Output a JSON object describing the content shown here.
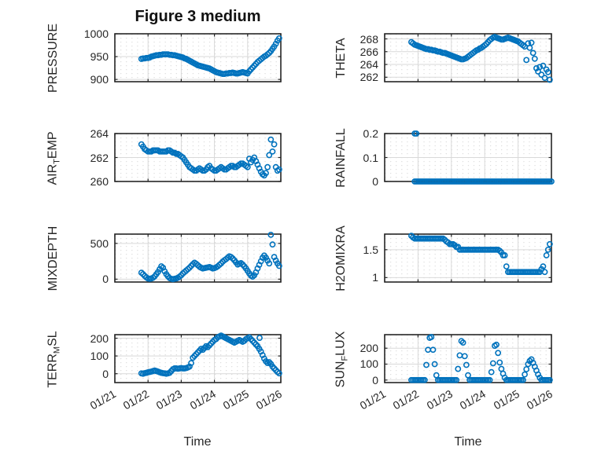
{
  "title": "Figure 3 medium",
  "xlabel": "Time",
  "accent_color": "#0072BD",
  "axis_color": "#262626",
  "grid_color": "#d9d9d9",
  "minor_grid_color": "#c9c9c9",
  "x_axis": {
    "xlim": [
      21,
      26
    ],
    "tick_values": [
      21,
      22,
      23,
      24,
      25,
      26
    ],
    "tick_labels": [
      "01/21",
      "01/22",
      "01/23",
      "01/24",
      "01/25",
      "01/26"
    ]
  },
  "chart_data": [
    {
      "type": "scatter",
      "name": "pressure",
      "marker": "open-circle",
      "ylabel_parts": [
        {
          "t": "PRESSURE"
        }
      ],
      "ylim": [
        895,
        1000
      ],
      "yticks": [
        900,
        950,
        1000
      ],
      "ytick_labels": [
        "900",
        "950",
        "1000"
      ],
      "grid": true,
      "series": {
        "x_start": 21.8,
        "x_step": 0.05,
        "y": [
          945,
          946,
          946,
          947,
          947,
          948,
          950,
          951,
          952,
          953,
          953,
          954,
          954,
          955,
          955,
          955,
          955,
          954,
          954,
          953,
          953,
          952,
          951,
          950,
          949,
          948,
          946,
          945,
          943,
          941,
          939,
          937,
          935,
          933,
          931,
          930,
          929,
          928,
          927,
          926,
          925,
          924,
          922,
          920,
          918,
          916,
          915,
          914,
          913,
          912,
          912,
          913,
          913,
          914,
          914,
          915,
          914,
          913,
          913,
          914,
          915,
          916,
          915,
          914,
          913,
          918,
          922,
          926,
          930,
          934,
          938,
          941,
          944,
          947,
          950,
          952,
          955,
          958,
          962,
          967,
          972,
          978,
          985,
          990
        ]
      },
      "extra_points": []
    },
    {
      "type": "scatter",
      "name": "theta",
      "marker": "open-circle",
      "ylabel_parts": [
        {
          "t": "THETA"
        }
      ],
      "ylim": [
        261.3,
        268.8
      ],
      "yticks": [
        262,
        264,
        266,
        268
      ],
      "ytick_labels": [
        "262",
        "264",
        "266",
        "268"
      ],
      "grid": true,
      "series": {
        "x_start": 21.8,
        "x_step": 0.05,
        "y": [
          267.5,
          267.3,
          267.1,
          267.0,
          266.9,
          266.8,
          266.7,
          266.6,
          266.5,
          266.4,
          266.4,
          266.3,
          266.3,
          266.2,
          266.2,
          266.1,
          266.0,
          266.0,
          265.9,
          265.8,
          265.8,
          265.7,
          265.6,
          265.5,
          265.4,
          265.3,
          265.2,
          265.1,
          265.0,
          264.9,
          264.8,
          264.8,
          264.9,
          265.0,
          265.2,
          265.4,
          265.6,
          265.8,
          266.0,
          266.2,
          266.3,
          266.5,
          266.6,
          266.8,
          267.0,
          267.2,
          267.5,
          267.8,
          268.0,
          268.2,
          268.3,
          268.2,
          268.1,
          268.0,
          267.9,
          267.9,
          268.0,
          268.1,
          268.2,
          268.1,
          268.0,
          267.9,
          267.8,
          267.7,
          267.6,
          267.4,
          267.2,
          267.0,
          266.8,
          264.7,
          267.3,
          266.6,
          267.4,
          265.8,
          264.9,
          263.4,
          262.9,
          263.6,
          262.4,
          263.8,
          261.9,
          263.2,
          262.8,
          261.6
        ]
      },
      "extra_points": []
    },
    {
      "type": "scatter",
      "name": "air_temp",
      "marker": "open-circle",
      "ylabel_parts": [
        {
          "t": "AIR"
        },
        {
          "s": "T"
        },
        {
          "t": "EMP"
        }
      ],
      "ylim": [
        260,
        264
      ],
      "yticks": [
        260,
        262,
        264
      ],
      "ytick_labels": [
        "260",
        "262",
        "264"
      ],
      "grid": true,
      "series": {
        "x_start": 21.8,
        "x_step": 0.05,
        "y": [
          263.1,
          262.9,
          262.7,
          262.6,
          262.5,
          262.5,
          262.5,
          262.6,
          262.6,
          262.6,
          262.6,
          262.5,
          262.5,
          262.5,
          262.5,
          262.5,
          262.6,
          262.6,
          262.5,
          262.4,
          262.4,
          262.3,
          262.3,
          262.2,
          262.1,
          262.0,
          261.8,
          261.6,
          261.4,
          261.2,
          261.1,
          261.0,
          260.9,
          260.9,
          261.0,
          261.1,
          261.0,
          260.9,
          260.9,
          261.0,
          261.2,
          261.3,
          261.1,
          261.0,
          260.9,
          260.9,
          261.0,
          261.1,
          261.2,
          261.1,
          261.0,
          261.0,
          261.1,
          261.2,
          261.3,
          261.3,
          261.2,
          261.2,
          261.3,
          261.4,
          261.5,
          261.5,
          261.4,
          261.3,
          261.2,
          261.9,
          261.6,
          261.8,
          262.0,
          261.7,
          261.4,
          261.1,
          260.8,
          260.6,
          260.5,
          260.7,
          261.2,
          262.2,
          263.5,
          262.5,
          263.1,
          261.2,
          260.9,
          261.0
        ]
      },
      "extra_points": []
    },
    {
      "type": "scatter",
      "name": "rainfall",
      "marker": "open-circle",
      "ylabel_parts": [
        {
          "t": "RAINFALL"
        }
      ],
      "ylim": [
        0,
        0.2
      ],
      "yticks": [
        0,
        0.1,
        0.2
      ],
      "ytick_labels": [
        "0",
        "0.1",
        "0.2"
      ],
      "grid": true,
      "series": {
        "x_start": 21.9,
        "x_step": 0.05,
        "y": [
          0,
          0,
          0,
          0,
          0,
          0,
          0,
          0,
          0,
          0,
          0,
          0,
          0,
          0,
          0,
          0,
          0,
          0,
          0,
          0,
          0,
          0,
          0,
          0,
          0,
          0,
          0,
          0,
          0,
          0,
          0,
          0,
          0,
          0,
          0,
          0,
          0,
          0,
          0,
          0,
          0,
          0,
          0,
          0,
          0,
          0,
          0,
          0,
          0,
          0,
          0,
          0,
          0,
          0,
          0,
          0,
          0,
          0,
          0,
          0,
          0,
          0,
          0,
          0,
          0,
          0,
          0,
          0,
          0,
          0,
          0,
          0,
          0,
          0,
          0,
          0,
          0,
          0,
          0,
          0,
          0,
          0,
          0
        ]
      },
      "extra_points": [
        [
          21.9,
          0.2
        ],
        [
          21.95,
          0.2
        ]
      ]
    },
    {
      "type": "scatter",
      "name": "mixdepth",
      "marker": "open-circle",
      "ylabel_parts": [
        {
          "t": "MIXDEPTH"
        }
      ],
      "ylim": [
        -40,
        630
      ],
      "yticks": [
        0,
        500
      ],
      "ytick_labels": [
        "0",
        "500"
      ],
      "grid": true,
      "series": {
        "x_start": 21.8,
        "x_step": 0.05,
        "y": [
          90,
          70,
          45,
          25,
          10,
          5,
          10,
          20,
          40,
          70,
          100,
          140,
          180,
          160,
          110,
          70,
          40,
          15,
          5,
          0,
          5,
          10,
          20,
          35,
          55,
          80,
          100,
          120,
          140,
          160,
          185,
          210,
          230,
          215,
          195,
          175,
          160,
          150,
          155,
          160,
          165,
          170,
          160,
          150,
          155,
          165,
          180,
          200,
          220,
          245,
          265,
          280,
          300,
          320,
          310,
          290,
          265,
          235,
          205,
          215,
          225,
          205,
          180,
          150,
          115,
          80,
          50,
          35,
          55,
          95,
          150,
          200,
          250,
          300,
          330,
          300,
          260,
          220,
          620,
          485,
          310,
          260,
          220,
          185
        ]
      },
      "extra_points": []
    },
    {
      "type": "scatter",
      "name": "h2omixra",
      "marker": "open-circle",
      "ylabel_parts": [
        {
          "t": "H2OMIXRA"
        }
      ],
      "ylim": [
        0.92,
        1.78
      ],
      "yticks": [
        1,
        1.5
      ],
      "ytick_labels": [
        "1",
        "1.5"
      ],
      "grid": true,
      "series": {
        "x_start": 21.8,
        "x_step": 0.05,
        "y": [
          1.75,
          1.72,
          1.7,
          1.7,
          1.7,
          1.7,
          1.7,
          1.7,
          1.7,
          1.7,
          1.7,
          1.7,
          1.7,
          1.7,
          1.7,
          1.7,
          1.7,
          1.7,
          1.7,
          1.7,
          1.68,
          1.65,
          1.63,
          1.6,
          1.6,
          1.6,
          1.58,
          1.55,
          1.55,
          1.5,
          1.5,
          1.5,
          1.5,
          1.5,
          1.5,
          1.5,
          1.5,
          1.5,
          1.5,
          1.5,
          1.5,
          1.5,
          1.5,
          1.5,
          1.5,
          1.5,
          1.5,
          1.5,
          1.5,
          1.5,
          1.5,
          1.5,
          1.5,
          1.48,
          1.45,
          1.4,
          1.4,
          1.2,
          1.1,
          1.1,
          1.1,
          1.1,
          1.1,
          1.1,
          1.1,
          1.1,
          1.1,
          1.1,
          1.1,
          1.1,
          1.1,
          1.1,
          1.1,
          1.1,
          1.1,
          1.1,
          1.1,
          1.1,
          1.15,
          1.2,
          1.1,
          1.4,
          1.5,
          1.6
        ]
      },
      "extra_points": []
    },
    {
      "type": "scatter",
      "name": "terr_msl",
      "marker": "open-circle",
      "ylabel_parts": [
        {
          "t": "TERR"
        },
        {
          "s": "M"
        },
        {
          "t": "SL"
        }
      ],
      "ylim": [
        -50,
        220
      ],
      "yticks": [
        0,
        100,
        200
      ],
      "ytick_labels": [
        "0",
        "100",
        "200"
      ],
      "grid": true,
      "series": {
        "x_start": 21.8,
        "x_step": 0.05,
        "y": [
          2,
          0,
          3,
          5,
          8,
          10,
          12,
          15,
          18,
          15,
          12,
          8,
          5,
          3,
          2,
          0,
          2,
          5,
          15,
          25,
          30,
          30,
          28,
          30,
          32,
          30,
          30,
          32,
          35,
          40,
          60,
          90,
          100,
          110,
          120,
          130,
          140,
          135,
          145,
          155,
          150,
          160,
          170,
          180,
          190,
          195,
          205,
          210,
          215,
          210,
          205,
          200,
          195,
          190,
          185,
          180,
          175,
          180,
          185,
          190,
          185,
          180,
          185,
          195,
          200,
          205,
          195,
          185,
          175,
          165,
          155,
          140,
          125,
          105,
          85,
          70,
          60,
          65,
          55,
          40,
          30,
          20,
          10,
          2
        ]
      },
      "extra_points": [
        [
          25.36,
          202
        ]
      ]
    },
    {
      "type": "scatter",
      "name": "sun_flux",
      "marker": "open-circle",
      "ylabel_parts": [
        {
          "t": "SUN"
        },
        {
          "s": "F"
        },
        {
          "t": "LUX"
        }
      ],
      "ylim": [
        -16,
        285
      ],
      "yticks": [
        0,
        100,
        200
      ],
      "ytick_labels": [
        "0",
        "100",
        "200"
      ],
      "grid": true,
      "series": {
        "x_start": 21.8,
        "x_step": 0.05,
        "y": [
          0,
          0,
          0,
          0,
          0,
          0,
          0,
          0,
          0,
          95,
          190,
          265,
          270,
          190,
          100,
          30,
          0,
          0,
          0,
          0,
          0,
          0,
          0,
          0,
          0,
          0,
          0,
          0,
          70,
          155,
          245,
          235,
          150,
          95,
          30,
          0,
          0,
          0,
          0,
          0,
          0,
          0,
          0,
          0,
          0,
          0,
          0,
          0,
          50,
          105,
          215,
          222,
          170,
          110,
          70,
          40,
          15,
          0,
          0,
          0,
          0,
          0,
          0,
          0,
          0,
          0,
          0,
          0,
          35,
          68,
          100,
          120,
          130,
          108,
          84,
          60,
          35,
          15,
          0,
          0,
          0,
          0,
          0,
          0
        ]
      },
      "extra_points": []
    }
  ]
}
